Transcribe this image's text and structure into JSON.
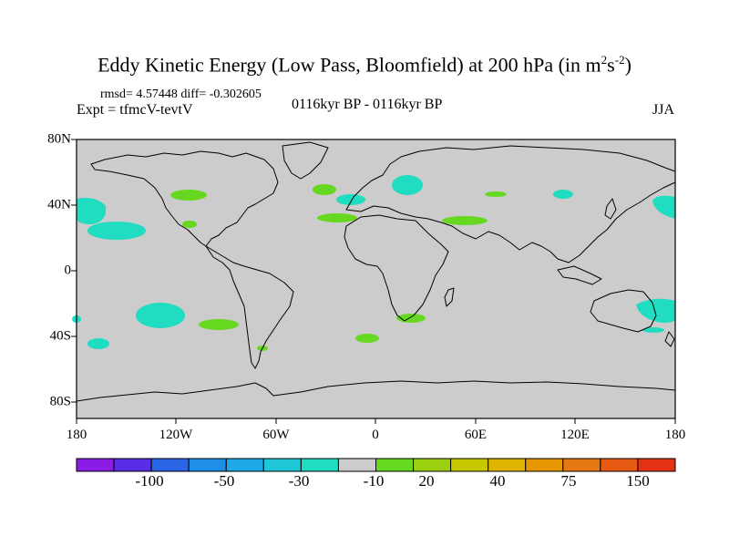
{
  "title_main": "Eddy Kinetic Energy (Low Pass, Bloomfield) at 200 hPa (in m",
  "title_sup1": "2",
  "title_mid": "s",
  "title_sup2": "-2",
  "title_end": ")",
  "stats": "rmsd= 4.57448 diff= -0.302605",
  "experiment": "Expt = tfmcV-tevtV",
  "period": "0116kyr BP - 0116kyr BP",
  "season": "JJA",
  "x_ticks": [
    "180",
    "120W",
    "60W",
    "0",
    "60E",
    "120E",
    "180"
  ],
  "y_ticks": [
    "80N",
    "40N",
    "0",
    "40S",
    "80S"
  ],
  "colorbar": {
    "labels": [
      "-100",
      "-50",
      "-30",
      "-10",
      "20",
      "40",
      "75",
      "150"
    ],
    "colors": [
      "#8a1ce6",
      "#5a2ee6",
      "#2a66e6",
      "#1e8ee6",
      "#1ea8e6",
      "#1ec8d8",
      "#20dcc0",
      "#cccccc",
      "#66d820",
      "#9ad010",
      "#c8c800",
      "#e0b400",
      "#e69600",
      "#e67814",
      "#e65a14",
      "#e63214"
    ]
  },
  "map_colors": {
    "ocean_land_bg": "#cccccc",
    "positive": "#66d820",
    "negative": "#20dcc0"
  }
}
